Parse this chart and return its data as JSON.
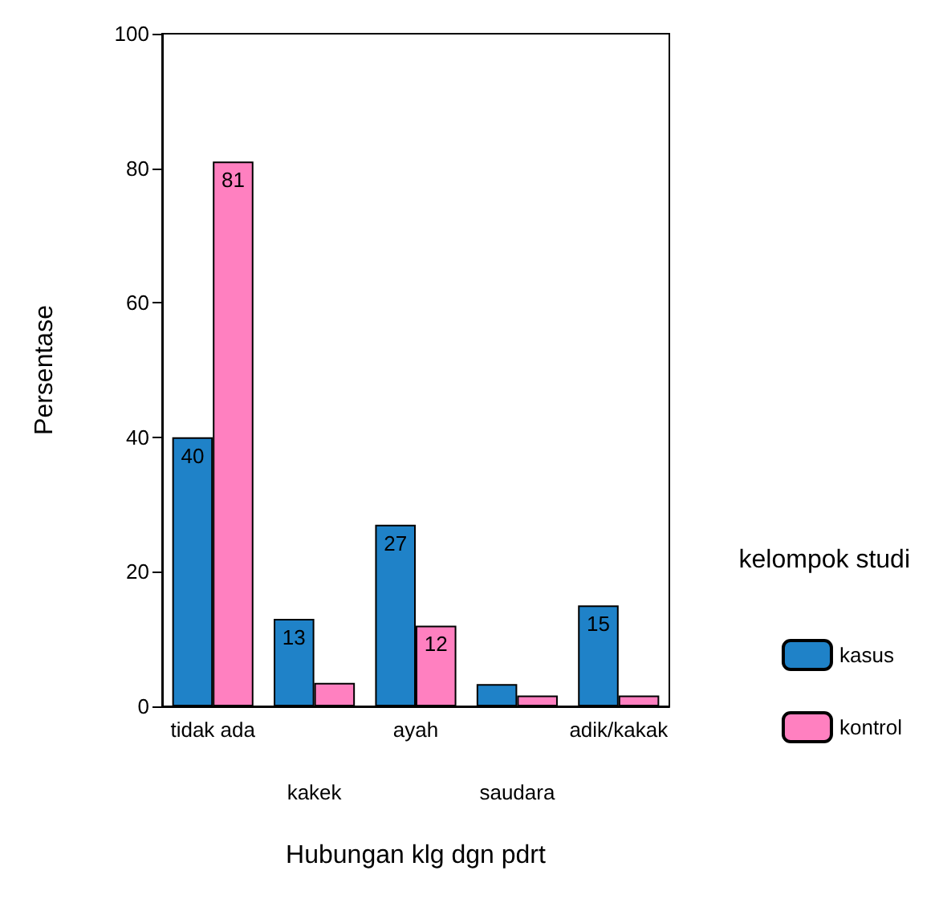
{
  "chart_data": {
    "type": "bar",
    "xlabel": "Hubungan klg dgn pdrt",
    "ylabel": "Persentase",
    "legend_title": "kelompok studi",
    "categories": [
      "tidak ada",
      "kakek",
      "ayah",
      "saudara",
      "adik/kakak"
    ],
    "series": [
      {
        "name": "kasus",
        "color": "#1f82c8",
        "values": [
          40,
          13,
          27,
          3.3,
          15
        ],
        "value_labels": [
          "40",
          "13",
          "27",
          null,
          "15"
        ]
      },
      {
        "name": "kontrol",
        "color": "#ff80c0",
        "values": [
          81,
          3.5,
          12,
          1.6,
          1.6
        ],
        "value_labels": [
          "81",
          null,
          "12",
          null,
          null
        ]
      }
    ],
    "ylim": [
      0,
      100
    ],
    "yticks": [
      0,
      20,
      40,
      60,
      80,
      100
    ],
    "grid": false,
    "legend": "right"
  }
}
